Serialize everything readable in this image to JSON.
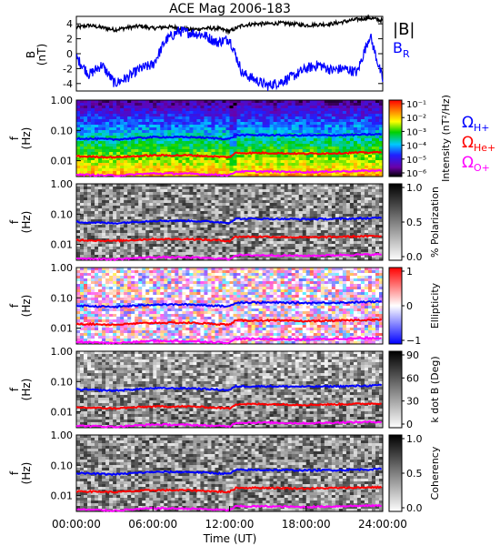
{
  "title": "ACE Mag 2006-183",
  "colors": {
    "b_magnitude": "#000000",
    "b_radial": "#0000ff",
    "omega_h": "#0000ff",
    "omega_he": "#ff0000",
    "omega_o": "#ff00ff"
  },
  "chart_data": [
    {
      "type": "line",
      "panel": "B",
      "ylabel": "B\n(nT)",
      "ylim": [
        -5,
        5
      ],
      "yticks": [
        "4",
        "2",
        "0",
        "-2",
        "-4"
      ],
      "xlim": [
        0,
        24
      ],
      "series": [
        {
          "name": "|B|",
          "x": [
            0,
            1,
            2,
            3,
            4,
            5,
            6,
            7,
            8,
            9,
            10,
            11,
            12,
            13,
            14,
            15,
            16,
            17,
            18,
            19,
            20,
            21,
            22,
            23,
            24
          ],
          "values": [
            3.5,
            3.8,
            3.5,
            3.2,
            3.5,
            3.7,
            3.4,
            3.6,
            3.5,
            3.2,
            3.4,
            3.4,
            3.0,
            3.8,
            4.0,
            4.0,
            4.1,
            4.0,
            3.8,
            3.9,
            4.0,
            4.3,
            4.6,
            4.8,
            4.4
          ]
        },
        {
          "name": "B_R",
          "x": [
            0,
            1,
            2,
            3,
            4,
            5,
            6,
            7,
            8,
            9,
            10,
            11,
            12,
            13,
            14,
            15,
            16,
            17,
            18,
            19,
            20,
            21,
            22,
            23,
            24
          ],
          "values": [
            -0.5,
            -2.8,
            -1.5,
            -4.0,
            -3.2,
            -2.0,
            -1.5,
            1.8,
            3.0,
            2.8,
            2.5,
            1.5,
            2.0,
            -2.6,
            -3.5,
            -4.3,
            -3.8,
            -3.0,
            -2.0,
            -1.5,
            -2.2,
            -2.0,
            -2.5,
            2.5,
            -3.5
          ]
        }
      ]
    },
    {
      "type": "heatmap",
      "panel": "Intensity",
      "ylabel": "f\n(Hz)",
      "colorbar_label": "Intensity (nT²/Hz)",
      "colorbar_ticks": [
        "10⁻¹",
        "10⁻²",
        "10⁻³",
        "10⁻⁴",
        "10⁻⁵",
        "10⁻⁶"
      ]
    },
    {
      "type": "heatmap",
      "panel": "Polarization",
      "ylabel": "f\n(Hz)",
      "colorbar_label": "% Polarization",
      "colorbar_ticks": [
        "1.0",
        "0.5",
        "0.0"
      ]
    },
    {
      "type": "heatmap",
      "panel": "Ellipticity",
      "ylabel": "f\n(Hz)",
      "colorbar_label": "Ellipticity",
      "colorbar_ticks": [
        "1",
        "0",
        "−1"
      ]
    },
    {
      "type": "heatmap",
      "panel": "k dot B",
      "ylabel": "f\n(Hz)",
      "colorbar_label": "k dot B (Deg)",
      "colorbar_ticks": [
        "90",
        "60",
        "30",
        "0"
      ]
    },
    {
      "type": "heatmap",
      "panel": "Coherency",
      "ylabel": "f\n(Hz)",
      "colorbar_label": "Coherency",
      "colorbar_ticks": [
        "1.0",
        "0.5",
        "0.0"
      ]
    }
  ],
  "freq_ticks": [
    "1.00",
    "0.10",
    "0.01"
  ],
  "gyro_lines": [
    {
      "label": "ΩH+",
      "x": [
        0,
        3,
        6,
        9,
        12,
        12.5,
        15,
        18,
        21,
        24
      ],
      "values": [
        0.055,
        0.05,
        0.06,
        0.06,
        0.052,
        0.07,
        0.07,
        0.068,
        0.07,
        0.075
      ]
    },
    {
      "label": "ΩHe+",
      "x": [
        0,
        3,
        6,
        9,
        12,
        12.5,
        15,
        18,
        21,
        24
      ],
      "values": [
        0.014,
        0.013,
        0.015,
        0.015,
        0.013,
        0.018,
        0.018,
        0.017,
        0.018,
        0.019
      ]
    },
    {
      "label": "ΩO+",
      "x": [
        0,
        3,
        6,
        9,
        12,
        12.5,
        15,
        18,
        21,
        24
      ],
      "values": [
        0.0035,
        0.0032,
        0.0038,
        0.0037,
        0.0033,
        0.0044,
        0.0044,
        0.0042,
        0.0045,
        0.0047
      ]
    }
  ],
  "legend": {
    "bmag": "|B|",
    "br": "B",
    "br_sub": "R",
    "omega_h": "Ω",
    "omega_h_sub": "H+",
    "omega_he": "Ω",
    "omega_he_sub": "He+",
    "omega_o": "Ω",
    "omega_o_sub": "O+"
  },
  "xaxis": {
    "ticks": [
      "00:00:00",
      "06:00:00",
      "12:00:00",
      "18:00:00",
      "24:00:00"
    ],
    "label": "Time (UT)"
  }
}
